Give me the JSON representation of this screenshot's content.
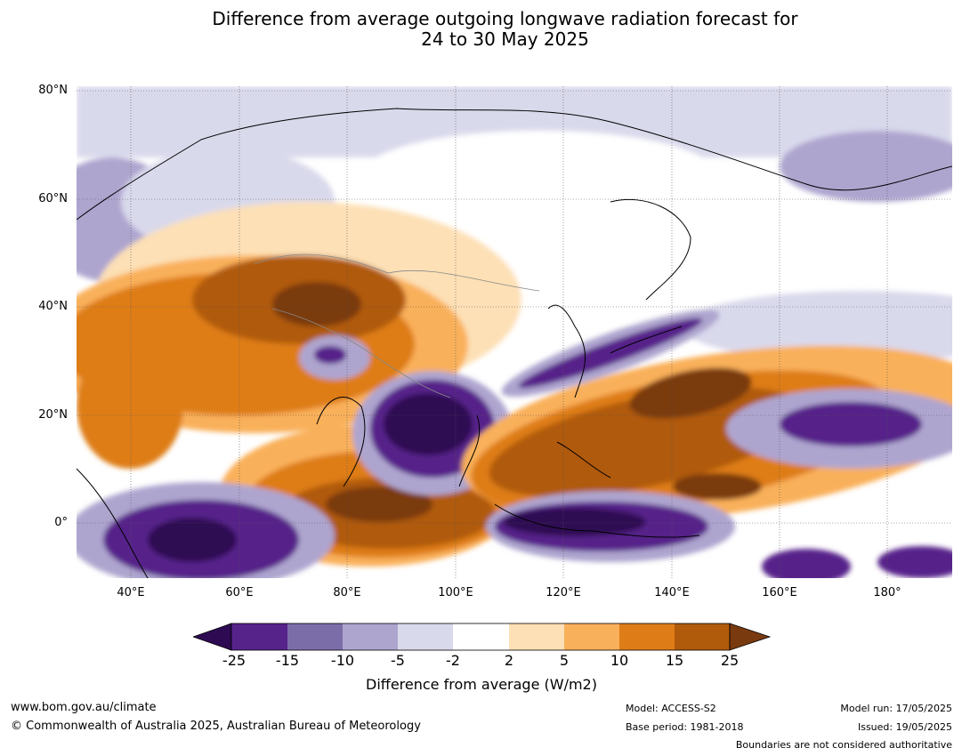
{
  "title": {
    "line1": "Difference from average outgoing longwave radiation forecast for",
    "line2": "24 to 30 May 2025"
  },
  "map": {
    "lat_labels": [
      "80°N",
      "60°N",
      "40°N",
      "20°N",
      "0°"
    ],
    "lon_labels": [
      "40°E",
      "60°E",
      "80°E",
      "100°E",
      "120°E",
      "140°E",
      "160°E",
      "180°"
    ],
    "extent": {
      "lon_min": 30,
      "lon_max": 192,
      "lat_min": -10,
      "lat_max": 81
    }
  },
  "colorbar": {
    "ticks": [
      "-25",
      "-15",
      "-10",
      "-5",
      "-2",
      "2",
      "5",
      "10",
      "15",
      "25"
    ],
    "colors": [
      "#2d0a52",
      "#56238a",
      "#7b6ea8",
      "#aea5cf",
      "#d9d9ec",
      "#ffffff",
      "#fde0b6",
      "#f9b05a",
      "#de7d17",
      "#b05a0b",
      "#7a3a10"
    ],
    "title": "Difference from average (W/m2)"
  },
  "footer": {
    "url": "www.bom.gov.au/climate",
    "copyright": "© Commonwealth of Australia 2025, Australian Bureau of Meteorology",
    "model": "Model: ACCESS-S2",
    "base_period": "Base period: 1981-2018",
    "model_run": "Model run: 17/05/2025",
    "issued": "Issued: 19/05/2025",
    "disclaimer": "Boundaries are not considered authoritative"
  }
}
